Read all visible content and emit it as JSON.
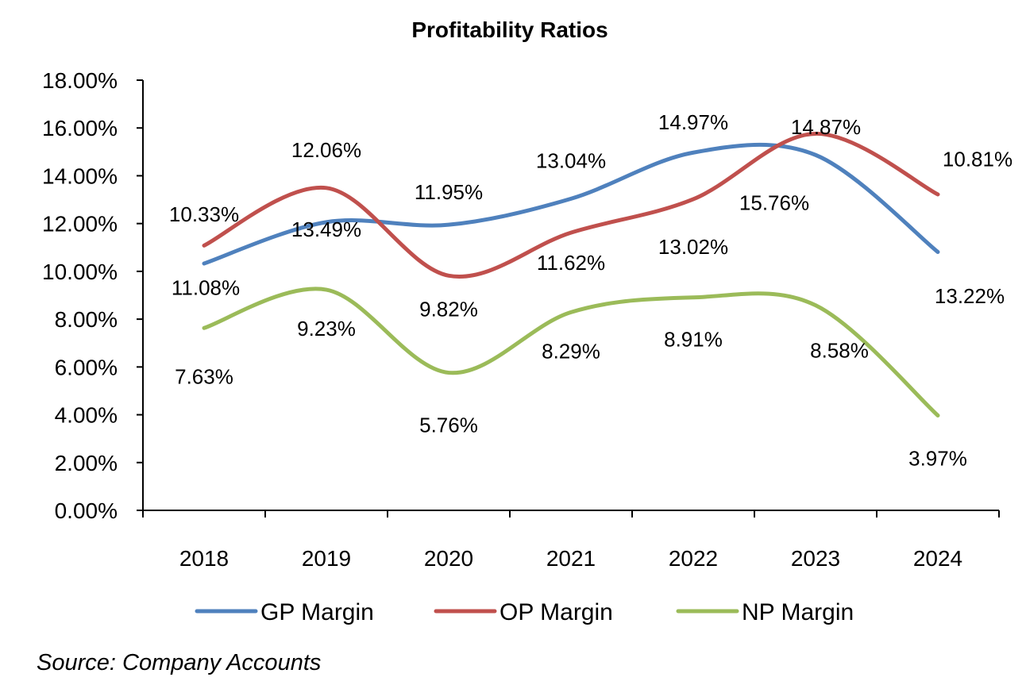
{
  "chart_data": {
    "type": "line",
    "title": "Profitability Ratios",
    "categories": [
      "2018",
      "2019",
      "2020",
      "2021",
      "2022",
      "2023",
      "2024"
    ],
    "ylim": [
      0,
      18
    ],
    "yticks": [
      "18.00%",
      "16.00%",
      "14.00%",
      "12.00%",
      "10.00%",
      "8.00%",
      "6.00%",
      "4.00%",
      "2.00%",
      "0.00%"
    ],
    "grid": false,
    "legend": "bottom",
    "series": [
      {
        "name": "GP Margin",
        "color": "#4f81bd",
        "values": [
          10.33,
          12.06,
          11.95,
          13.04,
          14.97,
          14.87,
          10.81
        ],
        "labels": [
          "10.33%",
          "12.06%",
          "11.95%",
          "13.04%",
          "14.97%",
          "14.87%",
          "10.81%"
        ]
      },
      {
        "name": "OP Margin",
        "color": "#c0504d",
        "values": [
          11.08,
          13.49,
          9.82,
          11.62,
          13.02,
          15.76,
          13.22
        ],
        "labels": [
          "11.08%",
          "13.49%",
          "9.82%",
          "11.62%",
          "13.02%",
          "15.76%",
          "13.22%"
        ]
      },
      {
        "name": "NP Margin",
        "color": "#9bbb59",
        "values": [
          7.63,
          9.23,
          5.76,
          8.29,
          8.91,
          8.58,
          3.97
        ],
        "labels": [
          "7.63%",
          "9.23%",
          "5.76%",
          "8.29%",
          "8.91%",
          "8.58%",
          "3.97%"
        ]
      }
    ],
    "source": "Source: Company Accounts"
  }
}
